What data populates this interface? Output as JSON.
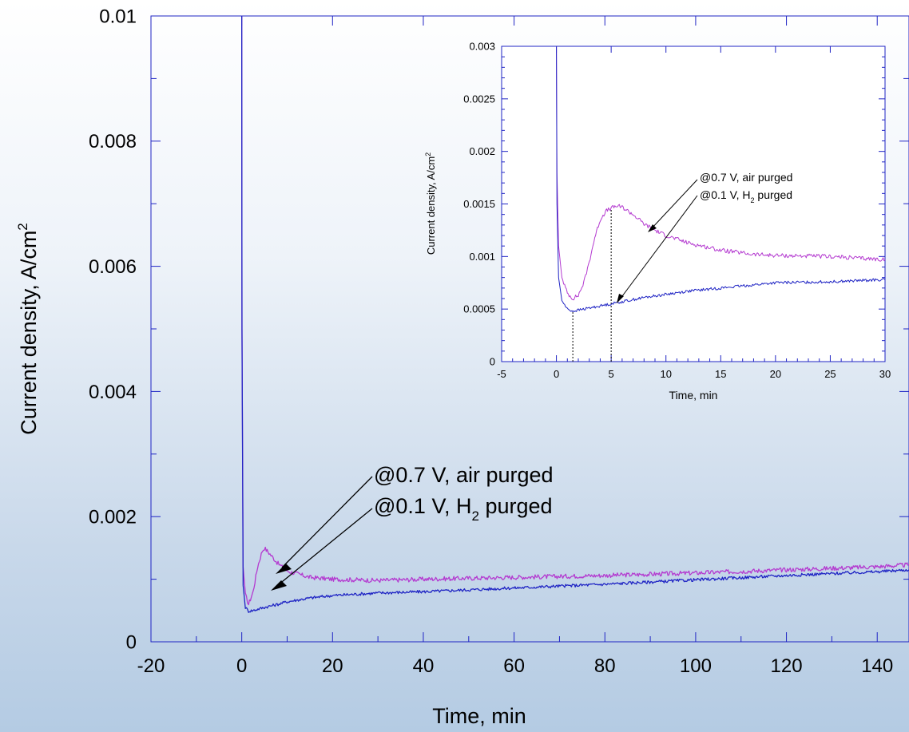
{
  "chart_data": [
    {
      "type": "line",
      "title": "",
      "xlabel": "Time, min",
      "ylabel": "Current density, A/cm",
      "ylabel_sup": "2",
      "xlim": [
        -20,
        147
      ],
      "ylim": [
        0,
        0.01
      ],
      "xticks": [
        "-20",
        "0",
        "20",
        "40",
        "60",
        "80",
        "100",
        "120",
        "140"
      ],
      "xtick_values": [
        -20,
        0,
        20,
        40,
        60,
        80,
        100,
        120,
        140
      ],
      "yticks": [
        "0",
        "0.002",
        "0.004",
        "0.006",
        "0.008",
        "0.01"
      ],
      "ytick_values": [
        0,
        0.002,
        0.004,
        0.006,
        0.008,
        0.01
      ],
      "series": [
        {
          "color": "#b43ad0",
          "x": [
            0,
            0.05,
            0.3,
            0.8,
            1.5,
            2.5,
            3.5,
            4.5,
            5,
            6,
            8,
            10,
            15,
            20,
            30,
            40,
            60,
            80,
            100,
            120,
            140,
            147
          ],
          "y": [
            0.01,
            0.005,
            0.0012,
            0.00075,
            0.0006,
            0.0008,
            0.0012,
            0.00145,
            0.0015,
            0.00142,
            0.00125,
            0.00113,
            0.00103,
            0.001,
            0.00098,
            0.001,
            0.00103,
            0.00106,
            0.0011,
            0.00115,
            0.0012,
            0.00123
          ]
        },
        {
          "color": "#1f24c4",
          "x": [
            0,
            0.05,
            0.3,
            0.8,
            1.5,
            2.5,
            4,
            5,
            8,
            10,
            15,
            20,
            30,
            40,
            60,
            80,
            100,
            120,
            140,
            147
          ],
          "y": [
            0.01,
            0.005,
            0.0009,
            0.00055,
            0.00049,
            0.0005,
            0.00053,
            0.00055,
            0.0006,
            0.00064,
            0.0007,
            0.00074,
            0.00078,
            0.0008,
            0.00086,
            0.00092,
            0.00099,
            0.00106,
            0.00112,
            0.00115
          ]
        }
      ],
      "annotations": [
        {
          "text": "@0.7 V, air purged"
        },
        {
          "text_prefix": "@0.1 V, H",
          "text_sub": "2",
          "text_suffix": " purged"
        }
      ]
    },
    {
      "type": "line",
      "title": "",
      "xlabel": "Time, min",
      "ylabel": "Current density, A/cm",
      "ylabel_sup": "2",
      "xlim": [
        -5,
        30
      ],
      "ylim": [
        0,
        0.003
      ],
      "xticks": [
        "-5",
        "0",
        "5",
        "10",
        "15",
        "20",
        "25",
        "30"
      ],
      "xtick_values": [
        -5,
        0,
        5,
        10,
        15,
        20,
        25,
        30
      ],
      "yticks": [
        "0",
        "0.0005",
        "0.001",
        "0.0015",
        "0.002",
        "0.0025",
        "0.003"
      ],
      "ytick_values": [
        0,
        0.0005,
        0.001,
        0.0015,
        0.002,
        0.0025,
        0.003
      ],
      "series": [
        {
          "color": "#b43ad0",
          "x": [
            0,
            0.05,
            0.2,
            0.5,
            1,
            1.5,
            2,
            2.5,
            3,
            3.5,
            4,
            4.5,
            5,
            5.5,
            6,
            7,
            8,
            9,
            10,
            12,
            15,
            18,
            20,
            25,
            30
          ],
          "y": [
            0.003,
            0.0018,
            0.0011,
            0.0008,
            0.00065,
            0.0006,
            0.00063,
            0.00075,
            0.00095,
            0.00118,
            0.00135,
            0.00143,
            0.00146,
            0.00148,
            0.00147,
            0.0014,
            0.00131,
            0.00125,
            0.0012,
            0.00113,
            0.00106,
            0.00102,
            0.00101,
            0.001,
            0.00097
          ]
        },
        {
          "color": "#1f24c4",
          "x": [
            0,
            0.05,
            0.2,
            0.5,
            1,
            1.5,
            2,
            3,
            4,
            5,
            6,
            8,
            10,
            12,
            15,
            18,
            20,
            25,
            30
          ],
          "y": [
            0.003,
            0.0015,
            0.0008,
            0.00058,
            0.0005,
            0.00048,
            0.00049,
            0.00051,
            0.00053,
            0.00055,
            0.00057,
            0.00061,
            0.00064,
            0.00067,
            0.0007,
            0.00073,
            0.00075,
            0.00076,
            0.00078
          ]
        }
      ],
      "annotations": [
        {
          "text": "@0.7 V, air purged"
        },
        {
          "text_prefix": "@0.1 V, H",
          "text_sub": "2",
          "text_suffix": " purged"
        }
      ],
      "reference_lines_x": [
        1.5,
        5
      ]
    }
  ]
}
